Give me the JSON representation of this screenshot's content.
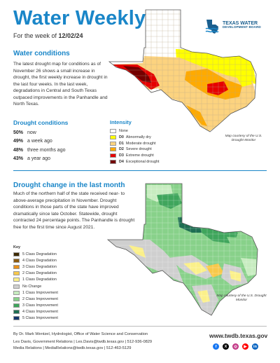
{
  "header": {
    "title": "Water Weekly",
    "week_prefix": "For the week of ",
    "week_date": "12/02/24",
    "logo_text_line1": "TEXAS WATER",
    "logo_text_line2": "DEVELOPMENT BOARD"
  },
  "water_conditions": {
    "heading": "Water conditions",
    "body": "The latest drought map for conditions as of November 26 shows a small increase in drought, the first weekly increase in drought in the last four weeks. In the last week, degradations in Central and South Texas outpaced improvements in the Panhandle and North Texas."
  },
  "drought_conditions": {
    "heading": "Drought conditions",
    "rows": [
      {
        "pct": "50%",
        "label": "now"
      },
      {
        "pct": "49%",
        "label": "a week ago"
      },
      {
        "pct": "48%",
        "label": "three months ago"
      },
      {
        "pct": "43%",
        "label": "a year ago"
      }
    ]
  },
  "intensity_legend": {
    "heading": "Intensity",
    "items": [
      {
        "code": "",
        "label": "None",
        "color": "#ffffff"
      },
      {
        "code": "D0",
        "label": "Abnormally dry",
        "color": "#ffff00"
      },
      {
        "code": "D1",
        "label": "Moderate drought",
        "color": "#fcd37f"
      },
      {
        "code": "D2",
        "label": "Severe drought",
        "color": "#ffaa00"
      },
      {
        "code": "D3",
        "label": "Extreme drought",
        "color": "#e60000"
      },
      {
        "code": "D4",
        "label": "Exceptional drought",
        "color": "#730000"
      }
    ],
    "courtesy": "Map courtesy of the U.S. Drought Monitor"
  },
  "drought_change": {
    "heading": "Drought change in the last month",
    "body": "Much of the northern half of the state received near- to above-average precipitation in November. Drought conditions in those parts of the state have improved dramatically since late October. Statewide, drought contracted 24 percentage points. The Panhandle is drought free for the first time since August 2021.",
    "key_heading": "Key",
    "key_items": [
      {
        "label": "5 Class Degradation",
        "color": "#3d2a05"
      },
      {
        "label": "4 Class Degradation",
        "color": "#8c5a10"
      },
      {
        "label": "3 Class Degradation",
        "color": "#e8901a"
      },
      {
        "label": "2 Class Degradation",
        "color": "#f8c84a"
      },
      {
        "label": "1 Class Degradation",
        "color": "#fbf08a"
      },
      {
        "label": "No Change",
        "color": "#cfcfcf"
      },
      {
        "label": "1 Class Improvement",
        "color": "#c7ecc0"
      },
      {
        "label": "2 Class Improvement",
        "color": "#88d18a"
      },
      {
        "label": "3 Class Improvement",
        "color": "#3fa55c"
      },
      {
        "label": "4 Class Improvement",
        "color": "#1e6e52"
      },
      {
        "label": "5 Class Improvement",
        "color": "#13356b"
      }
    ],
    "courtesy": "Map courtesy of the U.S. Drought Monitor"
  },
  "footer": {
    "credit": "By Dr. Mark Wentzel, Hydrologist, Office of Water Science and Conservation",
    "contact1": "Les Davis, Government Relations | Les.Davis@twdb.texas.gov | 512-936-0829",
    "contact2": "Media Relations | MediaRelations@twdb.texas.gov | 512-463-5129",
    "website": "www.twdb.texas.gov",
    "socials": [
      {
        "name": "facebook",
        "glyph": "f",
        "color": "#1877f2"
      },
      {
        "name": "x",
        "glyph": "X",
        "color": "#000000"
      },
      {
        "name": "instagram",
        "glyph": "◎",
        "color": "#c13584"
      },
      {
        "name": "youtube",
        "glyph": "▶",
        "color": "#ff0000"
      },
      {
        "name": "linkedin",
        "glyph": "in",
        "color": "#0a66c2"
      }
    ]
  }
}
